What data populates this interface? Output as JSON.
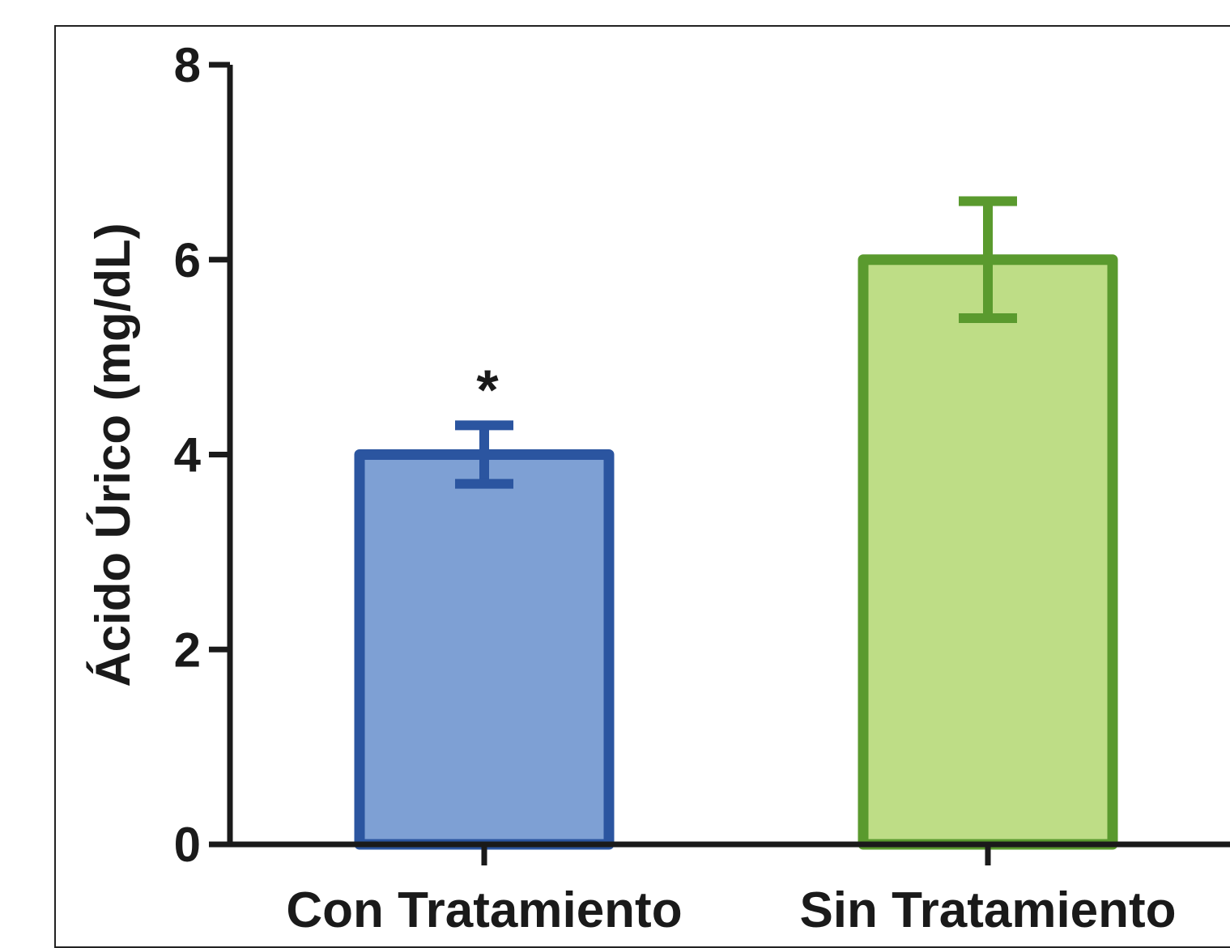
{
  "chart_data": {
    "type": "bar",
    "title": "",
    "xlabel": "",
    "ylabel": "Ácido Úrico (mg/dL)",
    "ylim": [
      0,
      8
    ],
    "yticks": [
      0,
      2,
      4,
      6,
      8
    ],
    "categories": [
      "Con Tratamiento",
      "Sin Tratamiento"
    ],
    "values": [
      4.0,
      6.0
    ],
    "error_bars": [
      [
        3.7,
        4.3
      ],
      [
        5.4,
        6.6
      ]
    ],
    "annotations": [
      "*",
      ""
    ],
    "grid": false,
    "colors": {
      "fill": [
        "#7ea0d4",
        "#bedd86"
      ],
      "stroke": [
        "#2b55a0",
        "#5a9a2e"
      ],
      "axis": "#1a1a1a"
    }
  }
}
